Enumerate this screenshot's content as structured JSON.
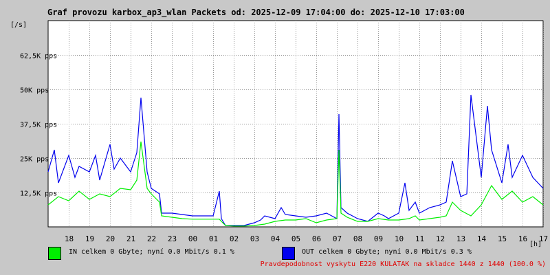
{
  "title": "Graf provozu karbox_ap3_wlan Packets od: 2025-12-09 17:04:00 do: 2025-12-10 17:03:00",
  "legend": {
    "in": {
      "color": "#00ee00",
      "text": "IN celkem 0 Gbyte; nyní   0.0 Mbit/s 0.1 %"
    },
    "out": {
      "color": "#0000ee",
      "text": "OUT celkem 0 Gbyte; nyní   0.0 Mbit/s 0.3 %"
    }
  },
  "footer_note": "Pravdepodobnost vyskytu E220 KULATAK na skladce 1440 z 1440 (100.0 %)",
  "chart_data": {
    "type": "line",
    "title": "Graf provozu karbox_ap3_wlan Packets od: 2025-12-09 17:04:00 do: 2025-12-10 17:03:00",
    "ylabel": "[/s]",
    "xlabel": "[h]",
    "ylim": [
      0,
      75000
    ],
    "xlim": [
      17,
      41
    ],
    "grid": true,
    "y_ticks": [
      12500,
      25000,
      37500,
      50000,
      62500
    ],
    "y_tick_labels": [
      "12,5K pps",
      "25K pps",
      "37,5K pps",
      "50K pps",
      "62,5K pps"
    ],
    "x_tick_labels": [
      "18",
      "19",
      "20",
      "21",
      "22",
      "23",
      "00",
      "01",
      "02",
      "03",
      "04",
      "05",
      "06",
      "07",
      "08",
      "09",
      "10",
      "11",
      "12",
      "13",
      "14",
      "15",
      "16",
      "17"
    ],
    "series": [
      {
        "name": "IN",
        "color": "#00ee00",
        "x": [
          17,
          17.5,
          18,
          18.5,
          19,
          19.5,
          20,
          20.5,
          21,
          21.3,
          21.5,
          21.8,
          22,
          22.4,
          22.5,
          23,
          23.5,
          24,
          24.5,
          25,
          25.3,
          25.4,
          25.6,
          26,
          26.5,
          27,
          27.5,
          28,
          28.5,
          29,
          29.5,
          30,
          30.5,
          31,
          31.1,
          31.2,
          31.5,
          32,
          32.5,
          33,
          33.5,
          34,
          34.5,
          34.8,
          35,
          35.5,
          36,
          36.3,
          36.6,
          37,
          37.5,
          38,
          38.5,
          39,
          39.5,
          40,
          40.5,
          41
        ],
        "values": [
          8000,
          11000,
          9500,
          13000,
          10000,
          12000,
          11000,
          14000,
          13500,
          17000,
          31000,
          14000,
          12000,
          9000,
          4000,
          3500,
          3000,
          2800,
          2800,
          2800,
          2800,
          2000,
          500,
          300,
          300,
          500,
          1000,
          2000,
          2500,
          2500,
          3000,
          1500,
          2500,
          3000,
          28000,
          5000,
          3500,
          2000,
          2000,
          3000,
          2500,
          2500,
          3000,
          4000,
          2500,
          3000,
          3500,
          4000,
          9000,
          6000,
          4000,
          8000,
          15000,
          10000,
          13000,
          9000,
          11000,
          8000
        ]
      },
      {
        "name": "OUT",
        "color": "#0000ee",
        "x": [
          17,
          17.3,
          17.5,
          18,
          18.3,
          18.5,
          19,
          19.3,
          19.5,
          20,
          20.2,
          20.5,
          21,
          21.3,
          21.5,
          21.8,
          22,
          22.4,
          22.5,
          23,
          23.5,
          24,
          24.5,
          25,
          25.3,
          25.4,
          25.6,
          26,
          26.5,
          27,
          27.3,
          27.5,
          28,
          28.3,
          28.5,
          29,
          29.5,
          30,
          30.5,
          31,
          31.1,
          31.2,
          31.5,
          32,
          32.5,
          33,
          33.3,
          33.5,
          34,
          34.3,
          34.5,
          34.8,
          35,
          35.5,
          36,
          36.3,
          36.6,
          37,
          37.3,
          37.5,
          38,
          38.3,
          38.5,
          39,
          39.3,
          39.5,
          40,
          40.5,
          41
        ],
        "values": [
          20000,
          28000,
          16000,
          26000,
          18000,
          22000,
          20000,
          26000,
          17000,
          30000,
          21000,
          25000,
          20000,
          27000,
          47000,
          20000,
          14000,
          12000,
          5000,
          5000,
          4500,
          4000,
          4000,
          4000,
          13000,
          3000,
          500,
          500,
          500,
          1500,
          2500,
          4000,
          3000,
          7000,
          4500,
          4000,
          3500,
          4000,
          5000,
          3000,
          41000,
          7000,
          5000,
          3000,
          2000,
          5000,
          4000,
          3000,
          5000,
          16000,
          6000,
          9000,
          5000,
          7000,
          8000,
          9000,
          24000,
          11000,
          12000,
          48000,
          18000,
          44000,
          28000,
          16000,
          30000,
          18000,
          26000,
          18000,
          14000
        ]
      }
    ]
  }
}
